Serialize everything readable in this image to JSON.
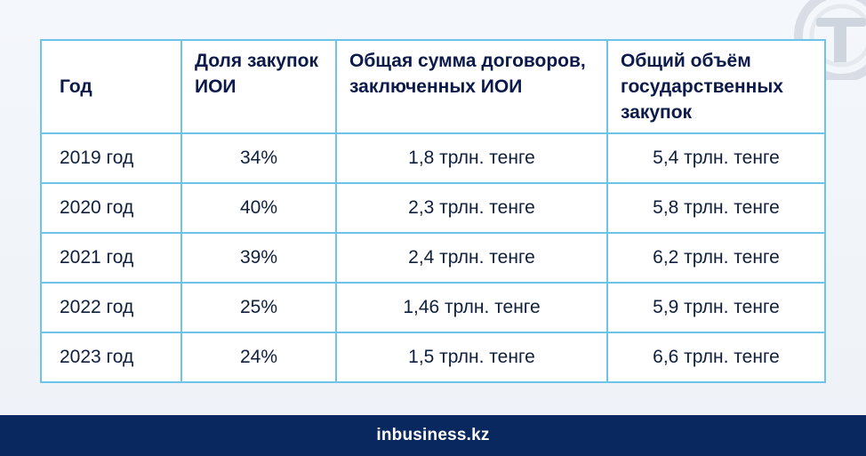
{
  "table": {
    "headers": [
      "Год",
      "Доля закупок ИОИ",
      "Общая сумма договоров, заключенных ИОИ",
      "Общий объём государственных закупок"
    ],
    "rows": [
      [
        "2019 год",
        "34%",
        "1,8 трлн. тенге",
        "5,4 трлн. тенге"
      ],
      [
        "2020 год",
        "40%",
        "2,3 трлн. тенге",
        "5,8 трлн. тенге"
      ],
      [
        "2021 год",
        "39%",
        "2,4 трлн. тенге",
        "6,2 трлн. тенге"
      ],
      [
        "2022 год",
        "25%",
        "1,46 трлн. тенге",
        "5,9 трлн. тенге"
      ],
      [
        "2023 год",
        "24%",
        "1,5 трлн. тенге",
        "6,6 трлн. тенге"
      ]
    ]
  },
  "footer": {
    "brand": "inbusiness.kz"
  },
  "colors": {
    "border": "#6ec3ea",
    "header_text": "#0b1a4a",
    "footer_bg": "#0a2860"
  },
  "icons": {
    "corner_logo": "tenge-logo-watermark"
  }
}
